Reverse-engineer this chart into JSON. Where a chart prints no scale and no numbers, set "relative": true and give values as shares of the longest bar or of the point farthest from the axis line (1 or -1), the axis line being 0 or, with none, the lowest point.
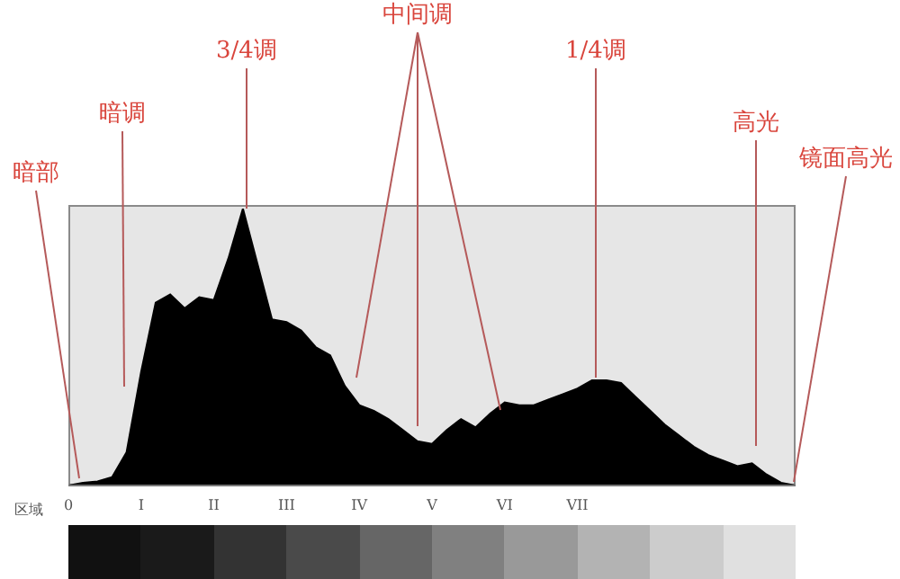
{
  "chart_data": {
    "type": "area",
    "relative": true,
    "color": "#000000",
    "xlabel": "区域",
    "categories": [
      "0",
      null,
      null,
      null,
      null,
      "I",
      null,
      null,
      null,
      null,
      "II",
      null,
      null,
      null,
      null,
      "III",
      null,
      null,
      null,
      null,
      "IV",
      null,
      null,
      null,
      null,
      "V",
      null,
      null,
      null,
      null,
      "VI",
      null,
      null,
      null,
      null,
      "VII",
      null,
      null,
      null,
      null,
      null,
      null,
      null,
      null,
      null,
      null,
      null,
      null,
      null,
      null,
      null
    ],
    "values": [
      0,
      0.01,
      0.015,
      0.03,
      0.12,
      0.41,
      0.66,
      0.69,
      0.64,
      0.68,
      0.67,
      0.82,
      1.0,
      0.8,
      0.6,
      0.59,
      0.56,
      0.5,
      0.47,
      0.36,
      0.29,
      0.27,
      0.24,
      0.2,
      0.16,
      0.15,
      0.2,
      0.24,
      0.21,
      0.26,
      0.3,
      0.29,
      0.29,
      0.31,
      0.33,
      0.35,
      0.38,
      0.38,
      0.37,
      0.32,
      0.27,
      0.22,
      0.18,
      0.14,
      0.11,
      0.09,
      0.07,
      0.08,
      0.04,
      0.01,
      0
    ],
    "annotations": [
      "暗部",
      "暗调",
      "3/4调",
      "中间调",
      "1/4调",
      "高光",
      "镜面高光"
    ]
  }
}
